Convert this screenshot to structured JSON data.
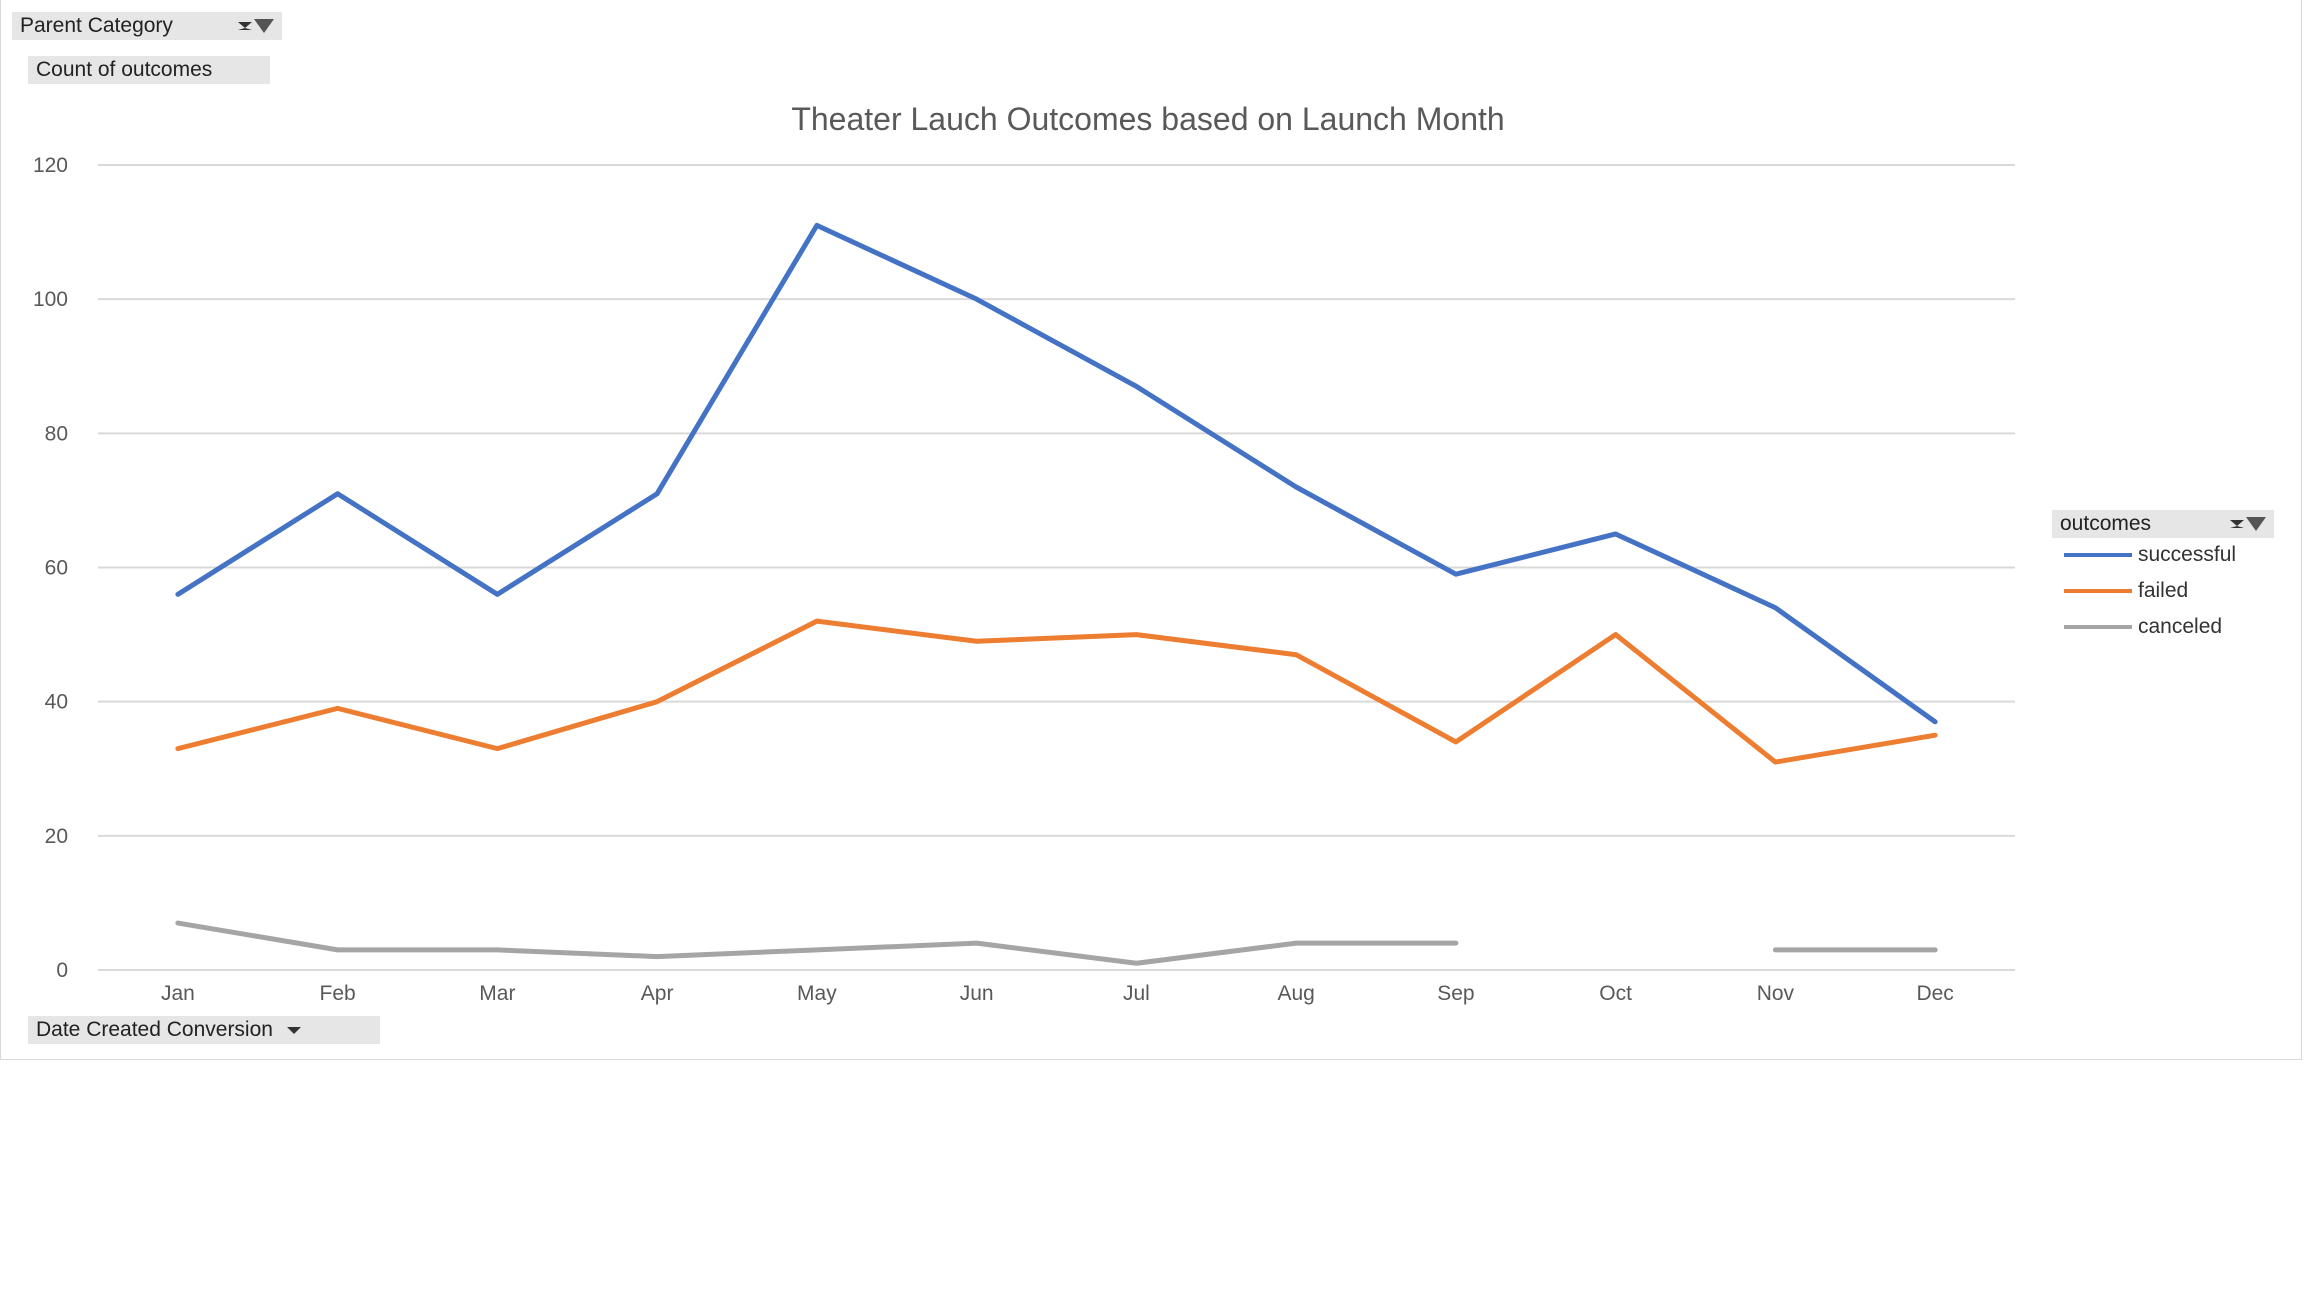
{
  "filters": {
    "parent_category": "Parent Category",
    "values_field": "Count of outcomes",
    "axis_field": "Date Created Conversion",
    "legend_field": "outcomes"
  },
  "chart_data": {
    "type": "line",
    "title": "Theater Lauch Outcomes based on Launch Month",
    "xlabel": "",
    "ylabel": "",
    "categories": [
      "Jan",
      "Feb",
      "Mar",
      "Apr",
      "May",
      "Jun",
      "Jul",
      "Aug",
      "Sep",
      "Oct",
      "Nov",
      "Dec"
    ],
    "ylim": [
      0,
      120
    ],
    "yticks": [
      0,
      20,
      40,
      60,
      80,
      100,
      120
    ],
    "grid": true,
    "legend_position": "right",
    "series": [
      {
        "name": "successful",
        "color": "#4472c4",
        "values": [
          56,
          71,
          56,
          71,
          111,
          100,
          87,
          72,
          59,
          65,
          54,
          37
        ]
      },
      {
        "name": "failed",
        "color": "#ed7d31",
        "values": [
          33,
          39,
          33,
          40,
          52,
          49,
          50,
          47,
          34,
          50,
          31,
          35
        ]
      },
      {
        "name": "canceled",
        "color": "#a5a5a5",
        "values": [
          7,
          3,
          3,
          2,
          3,
          4,
          1,
          4,
          4,
          null,
          3,
          3
        ]
      }
    ]
  }
}
